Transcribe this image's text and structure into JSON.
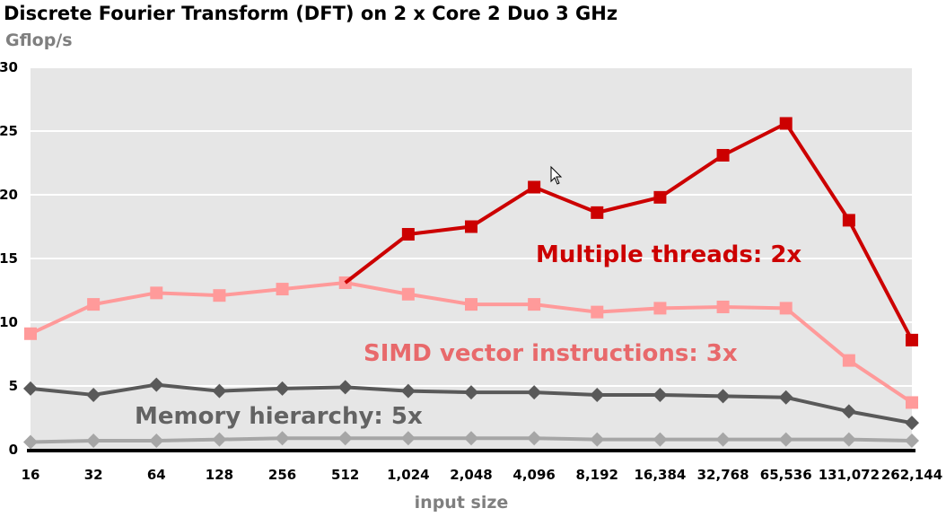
{
  "chart_data": {
    "type": "line",
    "title": "Discrete Fourier Transform (DFT) on 2 x Core 2 Duo 3 GHz",
    "ylabel": "Gflop/s",
    "xlabel": "input size",
    "categories": [
      "16",
      "32",
      "64",
      "128",
      "256",
      "512",
      "1,024",
      "2,048",
      "4,096",
      "8,192",
      "16,384",
      "32,768",
      "65,536",
      "131,072",
      "262,144"
    ],
    "ylim": [
      0,
      30
    ],
    "yticks": [
      0,
      5,
      10,
      15,
      20,
      25,
      30
    ],
    "grid": true,
    "series": [
      {
        "key": "threads",
        "marker": "square",
        "color": "#cc0000",
        "values": [
          9.1,
          11.4,
          12.3,
          12.1,
          12.6,
          13.1,
          16.9,
          17.5,
          20.6,
          18.6,
          19.8,
          23.1,
          25.6,
          18.0,
          8.6
        ]
      },
      {
        "key": "simd",
        "marker": "square",
        "color": "#ff9a9a",
        "values": [
          9.1,
          11.4,
          12.3,
          12.1,
          12.6,
          13.1,
          12.2,
          11.4,
          11.4,
          10.8,
          11.1,
          11.2,
          11.1,
          7.0,
          3.7
        ]
      },
      {
        "key": "memory",
        "marker": "diamond",
        "color": "#595959",
        "values": [
          4.8,
          4.3,
          5.1,
          4.6,
          4.8,
          4.9,
          4.6,
          4.5,
          4.5,
          4.3,
          4.3,
          4.2,
          4.1,
          3.0,
          2.1
        ]
      },
      {
        "key": "scalar",
        "marker": "diamond",
        "color": "#a6a6a6",
        "values": [
          0.6,
          0.7,
          0.7,
          0.8,
          0.9,
          0.9,
          0.9,
          0.9,
          0.9,
          0.8,
          0.8,
          0.8,
          0.8,
          0.8,
          0.7
        ]
      }
    ],
    "annotations": [
      {
        "key": "threads",
        "text": "Multiple threads: 2x",
        "color": "#cc0000"
      },
      {
        "key": "simd",
        "text": "SIMD vector instructions: 3x",
        "color": "#e8696b"
      },
      {
        "key": "memory",
        "text": "Memory hierarchy: 5x",
        "color": "#636363"
      }
    ]
  }
}
